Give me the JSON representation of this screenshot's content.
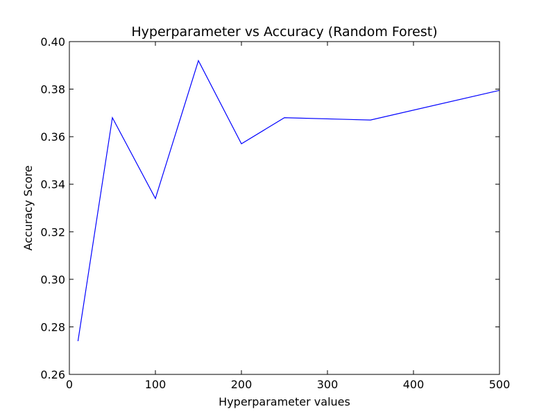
{
  "chart_data": {
    "type": "line",
    "title": "Hyperparameter vs Accuracy (Random Forest)",
    "xlabel": "Hyperparameter values",
    "ylabel": "Accuracy Score",
    "xlim": [
      0,
      500
    ],
    "ylim": [
      0.26,
      0.4
    ],
    "x_ticks": [
      0,
      100,
      200,
      300,
      400,
      500
    ],
    "x_tick_labels": [
      "0",
      "100",
      "200",
      "300",
      "400",
      "500"
    ],
    "y_ticks": [
      0.26,
      0.28,
      0.3,
      0.32,
      0.34,
      0.36,
      0.38,
      0.4
    ],
    "y_tick_labels": [
      "0.26",
      "0.28",
      "0.30",
      "0.32",
      "0.34",
      "0.36",
      "0.38",
      "0.40"
    ],
    "grid": false,
    "series": [
      {
        "color": "#0000ff",
        "x": [
          10,
          50,
          100,
          150,
          200,
          250,
          350,
          500
        ],
        "values": [
          0.274,
          0.368,
          0.334,
          0.392,
          0.357,
          0.368,
          0.367,
          0.3795
        ]
      }
    ]
  }
}
